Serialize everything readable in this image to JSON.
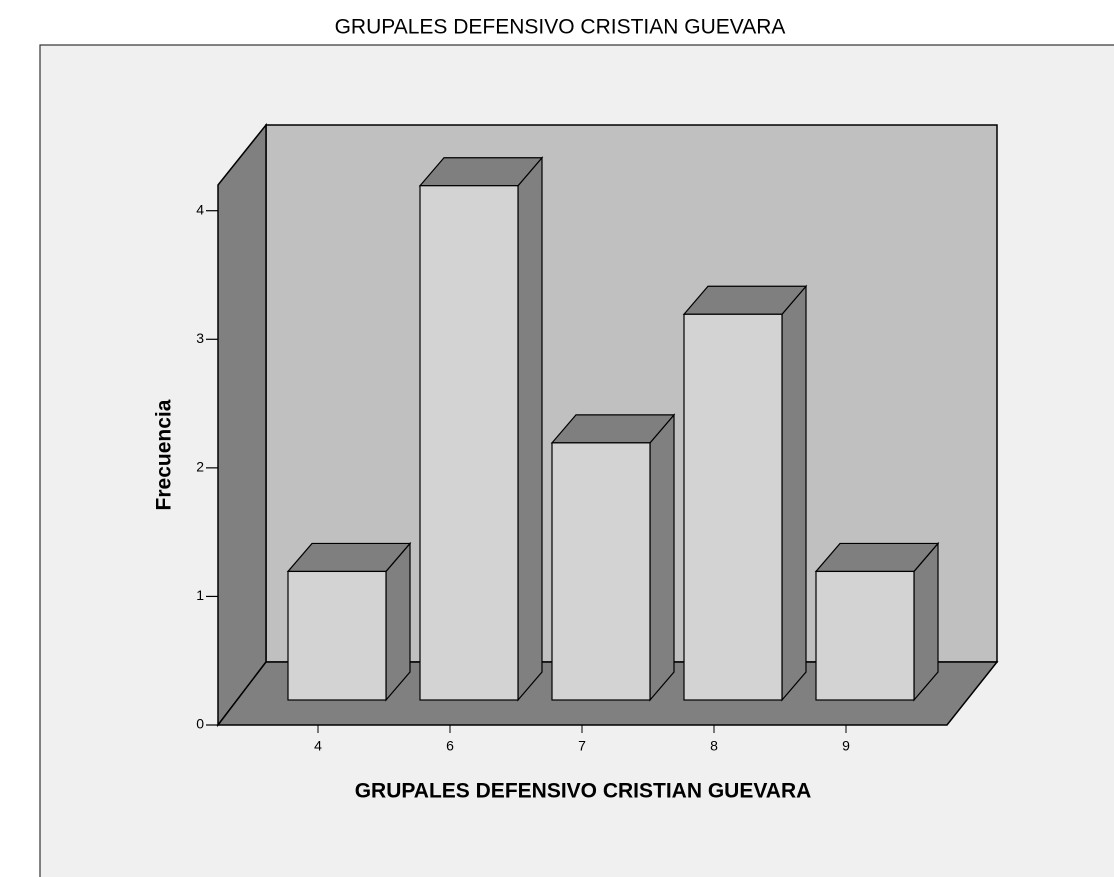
{
  "chart_data": {
    "type": "bar3d",
    "title": "GRUPALES  DEFENSIVO  CRISTIAN GUEVARA",
    "x_label": "GRUPALES  DEFENSIVO  CRISTIAN GUEVARA",
    "y_label": "Frecuencia",
    "categories": [
      "4",
      "6",
      "7",
      "8",
      "9"
    ],
    "values": [
      1,
      4,
      2,
      3,
      1
    ],
    "color": "#d3d3d3",
    "ylim": [
      0,
      4.2
    ],
    "yticks": [
      0,
      1,
      2,
      3,
      4
    ]
  }
}
